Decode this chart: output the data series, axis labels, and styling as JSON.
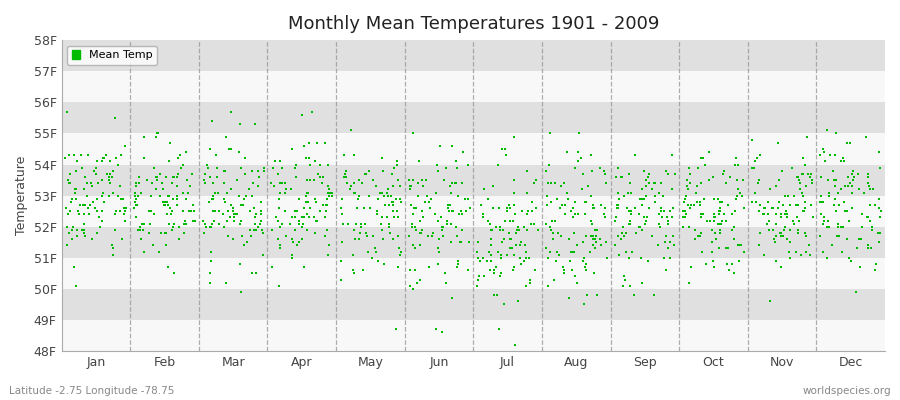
{
  "title": "Monthly Mean Temperatures 1901 - 2009",
  "ylabel": "Temperature",
  "xlabel": "",
  "subtitle_left": "Latitude -2.75 Longitude -78.75",
  "subtitle_right": "worldspecies.org",
  "ylim": [
    48,
    58
  ],
  "ytick_labels": [
    "48F",
    "49F",
    "50F",
    "51F",
    "52F",
    "53F",
    "54F",
    "55F",
    "56F",
    "57F",
    "58F"
  ],
  "ytick_values": [
    48,
    49,
    50,
    51,
    52,
    53,
    54,
    55,
    56,
    57,
    58
  ],
  "months": [
    "Jan",
    "Feb",
    "Mar",
    "Apr",
    "May",
    "Jun",
    "Jul",
    "Aug",
    "Sep",
    "Oct",
    "Nov",
    "Dec"
  ],
  "marker_color": "#00bb00",
  "marker_size": 4,
  "legend_label": "Mean Temp",
  "bg_color": "#ebebeb",
  "band_white": "#f8f8f8",
  "band_gray": "#e0e0e0",
  "n_years": 109,
  "seed": 42,
  "monthly_means_f": [
    52.85,
    52.7,
    52.8,
    52.9,
    52.5,
    52.1,
    51.85,
    51.9,
    52.3,
    52.5,
    52.6,
    52.75
  ],
  "monthly_stds_f": [
    1.05,
    1.05,
    1.05,
    1.05,
    1.1,
    1.2,
    1.25,
    1.2,
    1.1,
    1.05,
    1.05,
    1.1
  ],
  "quantize": 0.1
}
